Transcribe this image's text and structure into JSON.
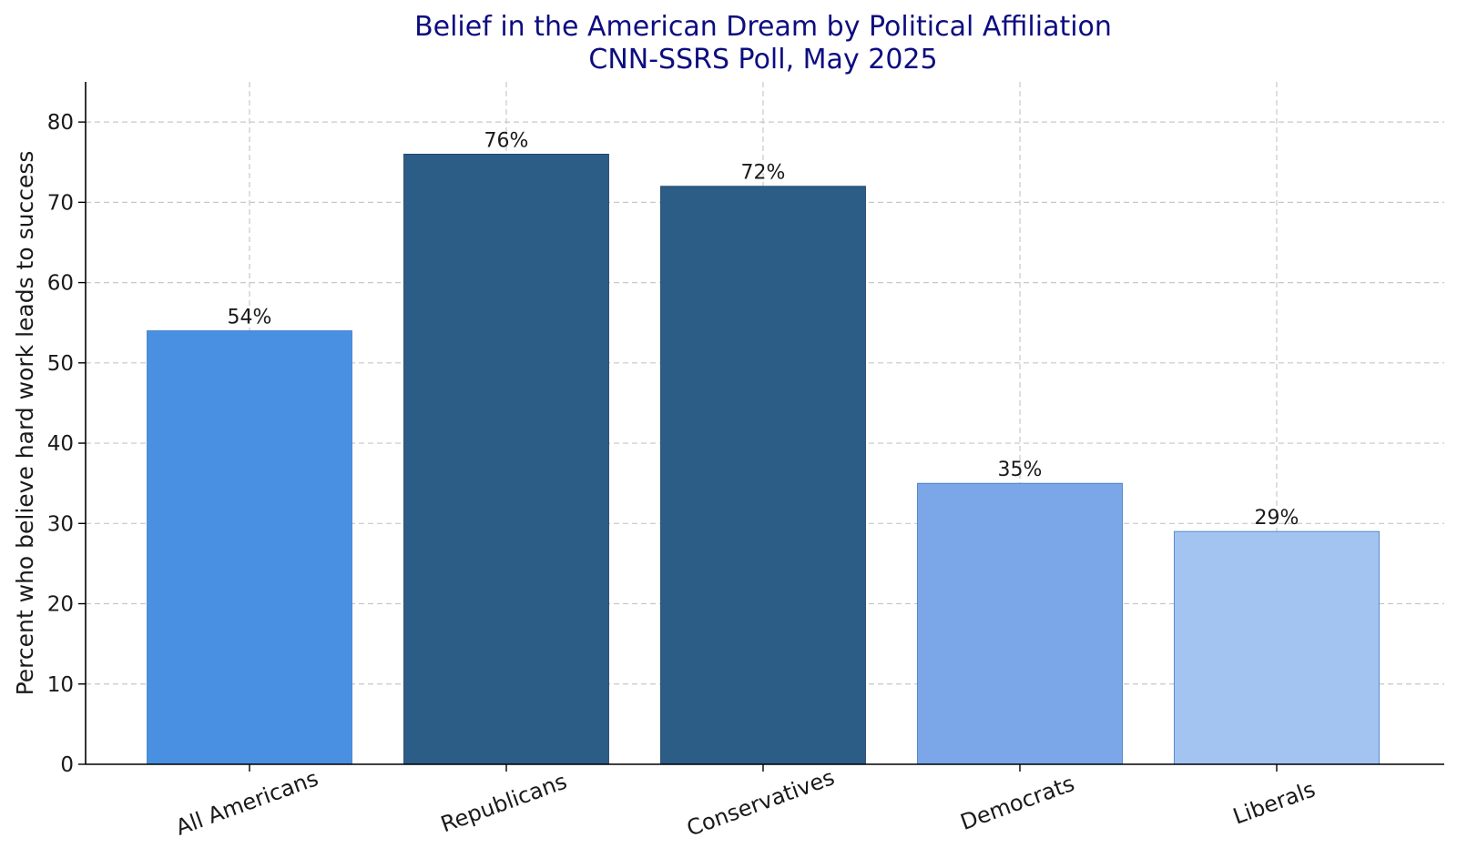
{
  "chart_data": {
    "type": "bar",
    "title": "Belief in the American Dream by Political Affiliation",
    "subtitle": "CNN-SSRS Poll, May 2025",
    "ylabel": "Percent who believe hard work leads to success",
    "xlabel": "",
    "categories": [
      "All Americans",
      "Republicans",
      "Conservatives",
      "Democrats",
      "Liberals"
    ],
    "values": [
      54,
      76,
      72,
      35,
      29
    ],
    "data_labels": [
      "54%",
      "76%",
      "72%",
      "35%",
      "29%"
    ],
    "colors": [
      "#4a90e2",
      "#2c5d87",
      "#2c5d87",
      "#7ba7e8",
      "#a3c4f1"
    ],
    "ylim": [
      0,
      85
    ],
    "yticks": [
      0,
      10,
      20,
      30,
      40,
      50,
      60,
      70,
      80
    ],
    "grid": true,
    "legend": "none"
  }
}
